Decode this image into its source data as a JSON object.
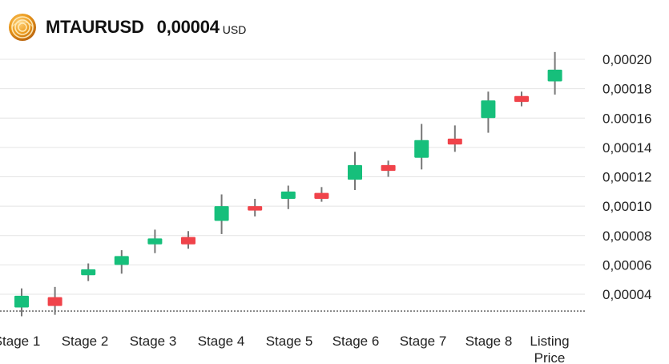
{
  "header": {
    "symbol": "MTAURUSD",
    "price": "0,00004",
    "currency": "USD",
    "logo_icon": "coin-logo-icon"
  },
  "colors": {
    "up": "#16bf7b",
    "down": "#f0434a",
    "wick": "#777777",
    "grid": "#e4e4e4",
    "text": "#111111",
    "axis_text": "#222222",
    "logo_gold": "#e58c10"
  },
  "chart_data": {
    "type": "candlestick",
    "categories": [
      "Stage 1",
      "Stage 2",
      "Stage 3",
      "Stage 4",
      "Stage 5",
      "Stage 6",
      "Stage 7",
      "Stage 8",
      "Listing Price"
    ],
    "y_ticks": [
      {
        "value": 4e-05,
        "label": "0,00004"
      },
      {
        "value": 6e-05,
        "label": "0,00006"
      },
      {
        "value": 8e-05,
        "label": "0,00008"
      },
      {
        "value": 0.0001,
        "label": "0,00010"
      },
      {
        "value": 0.00012,
        "label": "0,00012"
      },
      {
        "value": 0.00014,
        "label": "0,00014"
      },
      {
        "value": 0.00016,
        "label": "0.00016"
      },
      {
        "value": 0.00018,
        "label": "0,00018"
      },
      {
        "value": 0.0002,
        "label": "0,00020"
      }
    ],
    "ylim": [
      3e-05,
      0.00022
    ],
    "grid": true,
    "candles": [
      {
        "open": 3.1e-05,
        "close": 3.9e-05,
        "high": 4.4e-05,
        "low": 2.5e-05,
        "direction": "up"
      },
      {
        "open": 3.8e-05,
        "close": 3.2e-05,
        "high": 4.5e-05,
        "low": 2.6e-05,
        "direction": "down"
      },
      {
        "open": 5.3e-05,
        "close": 5.7e-05,
        "high": 6.1e-05,
        "low": 4.9e-05,
        "direction": "up"
      },
      {
        "open": 6e-05,
        "close": 6.6e-05,
        "high": 7e-05,
        "low": 5.4e-05,
        "direction": "up"
      },
      {
        "open": 7.4e-05,
        "close": 7.8e-05,
        "high": 8.4e-05,
        "low": 6.8e-05,
        "direction": "up"
      },
      {
        "open": 7.9e-05,
        "close": 7.4e-05,
        "high": 8.3e-05,
        "low": 7.1e-05,
        "direction": "down"
      },
      {
        "open": 9e-05,
        "close": 0.0001,
        "high": 0.000108,
        "low": 8.1e-05,
        "direction": "up"
      },
      {
        "open": 0.0001,
        "close": 9.7e-05,
        "high": 0.000105,
        "low": 9.3e-05,
        "direction": "down"
      },
      {
        "open": 0.000105,
        "close": 0.00011,
        "high": 0.000114,
        "low": 9.8e-05,
        "direction": "up"
      },
      {
        "open": 0.000109,
        "close": 0.000105,
        "high": 0.000113,
        "low": 0.000103,
        "direction": "down"
      },
      {
        "open": 0.000118,
        "close": 0.000128,
        "high": 0.000137,
        "low": 0.000111,
        "direction": "up"
      },
      {
        "open": 0.000128,
        "close": 0.000124,
        "high": 0.000131,
        "low": 0.00012,
        "direction": "down"
      },
      {
        "open": 0.000133,
        "close": 0.000145,
        "high": 0.000156,
        "low": 0.000125,
        "direction": "up"
      },
      {
        "open": 0.000146,
        "close": 0.000142,
        "high": 0.000155,
        "low": 0.000137,
        "direction": "down"
      },
      {
        "open": 0.00016,
        "close": 0.000172,
        "high": 0.000178,
        "low": 0.00015,
        "direction": "up"
      },
      {
        "open": 0.000175,
        "close": 0.000171,
        "high": 0.000178,
        "low": 0.000168,
        "direction": "down"
      },
      {
        "open": 0.000185,
        "close": 0.000193,
        "high": 0.000205,
        "low": 0.000176,
        "direction": "up"
      }
    ]
  }
}
